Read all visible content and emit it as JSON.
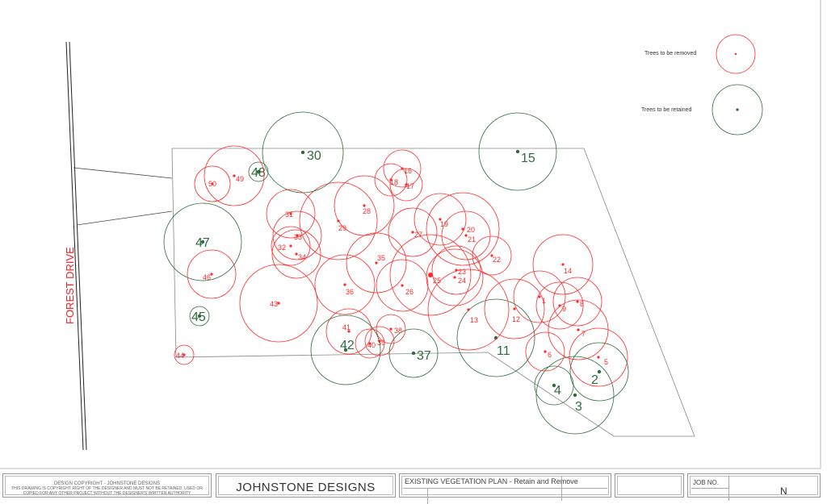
{
  "road": {
    "label": "FOREST DRIVE"
  },
  "legend": {
    "removed_label": "Trees to be removed",
    "retained_label": "Trees to be retained"
  },
  "colors": {
    "removed": "#ff2a2a",
    "retained": "#2f6b3f",
    "boundary": "#888888"
  },
  "trees": [
    {
      "id": "1",
      "status": "removed"
    },
    {
      "id": "2",
      "status": "retained"
    },
    {
      "id": "3",
      "status": "retained"
    },
    {
      "id": "4",
      "status": "retained"
    },
    {
      "id": "5",
      "status": "removed"
    },
    {
      "id": "6",
      "status": "removed"
    },
    {
      "id": "7",
      "status": "removed"
    },
    {
      "id": "8",
      "status": "removed"
    },
    {
      "id": "9",
      "status": "removed"
    },
    {
      "id": "11",
      "status": "retained"
    },
    {
      "id": "12",
      "status": "removed"
    },
    {
      "id": "13",
      "status": "removed"
    },
    {
      "id": "14",
      "status": "removed"
    },
    {
      "id": "15",
      "status": "retained"
    },
    {
      "id": "16",
      "status": "removed"
    },
    {
      "id": "17",
      "status": "removed"
    },
    {
      "id": "18",
      "status": "removed"
    },
    {
      "id": "19",
      "status": "removed"
    },
    {
      "id": "20",
      "status": "removed"
    },
    {
      "id": "21",
      "status": "removed"
    },
    {
      "id": "22",
      "status": "removed"
    },
    {
      "id": "23",
      "status": "removed"
    },
    {
      "id": "24",
      "status": "removed"
    },
    {
      "id": "25",
      "status": "removed"
    },
    {
      "id": "26",
      "status": "removed"
    },
    {
      "id": "27",
      "status": "removed"
    },
    {
      "id": "28",
      "status": "removed"
    },
    {
      "id": "29",
      "status": "removed"
    },
    {
      "id": "30",
      "status": "retained"
    },
    {
      "id": "31",
      "status": "removed"
    },
    {
      "id": "32",
      "status": "removed"
    },
    {
      "id": "33",
      "status": "removed"
    },
    {
      "id": "34",
      "status": "removed"
    },
    {
      "id": "35",
      "status": "removed"
    },
    {
      "id": "36",
      "status": "removed"
    },
    {
      "id": "37",
      "status": "retained"
    },
    {
      "id": "38",
      "status": "removed"
    },
    {
      "id": "39",
      "status": "removed"
    },
    {
      "id": "40",
      "status": "removed"
    },
    {
      "id": "41",
      "status": "removed"
    },
    {
      "id": "42",
      "status": "retained"
    },
    {
      "id": "43",
      "status": "removed"
    },
    {
      "id": "44",
      "status": "removed"
    },
    {
      "id": "45",
      "status": "retained"
    },
    {
      "id": "46",
      "status": "removed"
    },
    {
      "id": "47",
      "status": "retained"
    },
    {
      "id": "48",
      "status": "retained"
    },
    {
      "id": "49",
      "status": "removed"
    },
    {
      "id": "50",
      "status": "removed"
    }
  ],
  "title_block": {
    "copyright_title": "DESIGN COPYRIGHT - JOHNSTONE DESIGNS",
    "copyright_line1": "THIS DRAWING IS COPYRIGHT RIGHT OF THE DESIGNER AND MUST NOT BE RETAINED, USED OR",
    "copyright_line2": "COPIED FOR ANY OTHER PROJECT WITHOUT THE DESIGNER'S WRITTEN AUTHORITY",
    "company": "JOHNSTONE DESIGNS",
    "drawing_title": "EXISTING VEGETATION PLAN - Retain and Remove",
    "job_no_label": "JOB NO.",
    "partial_text": "N"
  }
}
